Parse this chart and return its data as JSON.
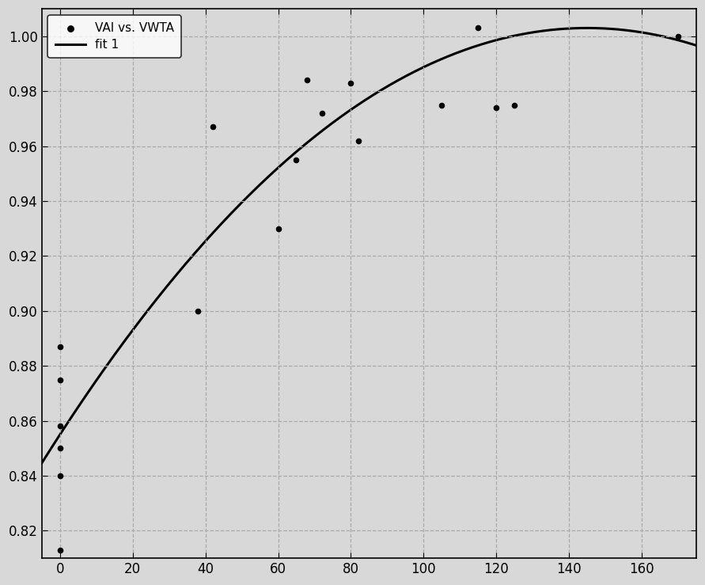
{
  "scatter_x": [
    0,
    0,
    0,
    0,
    0,
    0,
    38,
    42,
    60,
    65,
    68,
    72,
    80,
    82,
    105,
    115,
    120,
    125,
    170
  ],
  "scatter_y": [
    0.813,
    0.84,
    0.85,
    0.858,
    0.875,
    0.887,
    0.9,
    0.967,
    0.93,
    0.955,
    0.984,
    0.972,
    0.983,
    0.962,
    0.975,
    1.003,
    0.974,
    0.975,
    1.0
  ],
  "fit_c": 0.855,
  "fit_peak_x": 145.0,
  "fit_peak_y": 1.003,
  "xlim": [
    -5,
    175
  ],
  "ylim": [
    0.81,
    1.01
  ],
  "xticks": [
    0,
    20,
    40,
    60,
    80,
    100,
    120,
    140,
    160
  ],
  "yticks": [
    0.82,
    0.84,
    0.86,
    0.88,
    0.9,
    0.92,
    0.94,
    0.96,
    0.98,
    1.0
  ],
  "legend_scatter": "VAI vs. VWTA",
  "legend_fit": "fit 1",
  "grid_color": "#aaaaaa",
  "line_color": "#000000",
  "scatter_color": "#000000",
  "background_color": "#d8d8d8",
  "tick_label_color": "#000000"
}
